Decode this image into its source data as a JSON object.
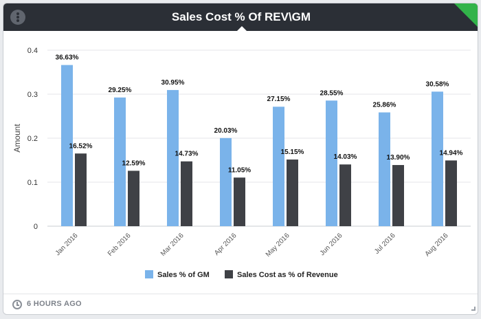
{
  "widget": {
    "title": "Sales Cost % Of REV\\GM",
    "updated": "6 HOURS AGO"
  },
  "colors": {
    "header_bg": "#2b2f36",
    "corner_flag": "#32b34a",
    "series_gm": "#7ab3ea",
    "series_rev": "#3f4146"
  },
  "chart_data": {
    "type": "bar",
    "title": "",
    "xlabel": "",
    "ylabel": "Amount",
    "ylim": [
      0,
      0.4
    ],
    "yticks": [
      0,
      0.1,
      0.2,
      0.3,
      0.4
    ],
    "ytick_labels": [
      "0",
      "0.1",
      "0.2",
      "0.3",
      "0.4"
    ],
    "grid": "horizontal",
    "legend_position": "bottom",
    "categories": [
      "Jan 2016",
      "Feb 2016",
      "Mar 2016",
      "Apr 2016",
      "May 2016",
      "Jun 2016",
      "Jul 2016",
      "Aug 2016"
    ],
    "series": [
      {
        "name": "Sales % of GM",
        "values": [
          0.3663,
          0.2925,
          0.3095,
          0.2003,
          0.2715,
          0.2855,
          0.2586,
          0.3058
        ],
        "labels": [
          "36.63%",
          "29.25%",
          "30.95%",
          "20.03%",
          "27.15%",
          "28.55%",
          "25.86%",
          "30.58%"
        ]
      },
      {
        "name": "Sales Cost as % of Revenue",
        "values": [
          0.1652,
          0.1259,
          0.1473,
          0.1105,
          0.1515,
          0.1403,
          0.139,
          0.1494
        ],
        "labels": [
          "16.52%",
          "12.59%",
          "14.73%",
          "11.05%",
          "15.15%",
          "14.03%",
          "13.90%",
          "14.94%"
        ]
      }
    ]
  }
}
